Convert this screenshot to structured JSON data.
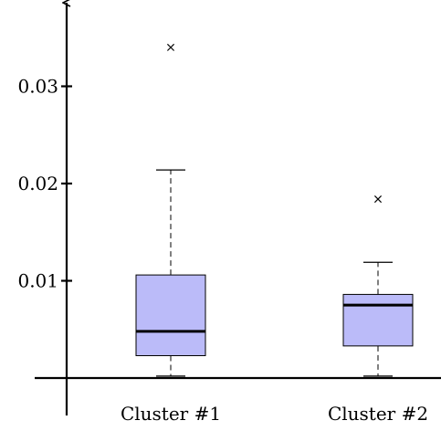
{
  "chart_data": {
    "type": "boxplot",
    "title": "",
    "xlabel": "",
    "ylabel": "",
    "categories": [
      "Cluster #1",
      "Cluster #2"
    ],
    "yticks": [
      {
        "value": 0.01,
        "label": "0.01"
      },
      {
        "value": 0.02,
        "label": "0.02"
      },
      {
        "value": 0.03,
        "label": "0.03"
      }
    ],
    "ylim": [
      0,
      0.035
    ],
    "grid": false,
    "box_color": "#bbbbf9",
    "boxes": [
      {
        "category": "Cluster #1",
        "whisker_low": 0.0002,
        "q1": 0.0023,
        "median": 0.0048,
        "q3": 0.0106,
        "whisker_high": 0.0214,
        "outliers": [
          0.034
        ]
      },
      {
        "category": "Cluster #2",
        "whisker_low": 0.0002,
        "q1": 0.0033,
        "median": 0.0075,
        "q3": 0.0086,
        "whisker_high": 0.0119,
        "outliers": [
          0.0184
        ]
      }
    ]
  }
}
